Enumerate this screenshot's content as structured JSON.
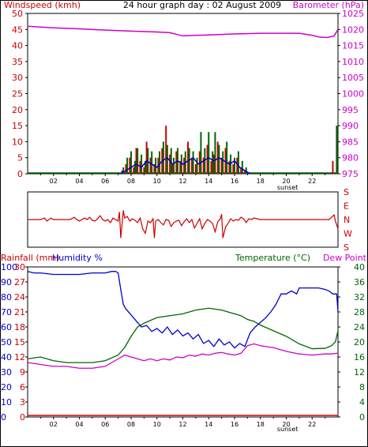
{
  "colors": {
    "wind": "#cc0000",
    "gust": "#006600",
    "avg": "#0000cc",
    "baro": "#cc00cc",
    "dir": "#cc0000",
    "rain": "#cc0000",
    "humidity": "#0000cc",
    "temperature": "#006600",
    "dew": "#cc00cc",
    "axis": "#000000"
  },
  "hour_labels": [
    "02",
    "04",
    "06",
    "08",
    "10",
    "12",
    "14",
    "16",
    "18",
    "20",
    "22"
  ],
  "sunset_label": "sunset",
  "chart_data": [
    {
      "type": "bar",
      "title": "24 hour graph day : 02 August 2009",
      "ylabel": "Windspeed (kmh)",
      "y2label": "Barometer (hPa)",
      "x_range": [
        0,
        24
      ],
      "ylim": [
        0,
        50
      ],
      "y_ticks": [
        0,
        5,
        10,
        15,
        20,
        25,
        30,
        35,
        40,
        45,
        50
      ],
      "y2lim": [
        975,
        1025
      ],
      "y2_ticks": [
        975,
        980,
        985,
        990,
        995,
        1000,
        1005,
        1010,
        1015,
        1020,
        1025
      ],
      "series": [
        {
          "key": "wind",
          "x": [
            7.3,
            7.6,
            7.9,
            8.2,
            8.4,
            8.7,
            9.0,
            9.2,
            9.5,
            9.8,
            10.1,
            10.4,
            10.7,
            11.0,
            11.2,
            11.5,
            11.8,
            12.1,
            12.4,
            12.7,
            13.0,
            13.3,
            13.6,
            13.9,
            14.2,
            14.4,
            14.7,
            15.0,
            15.3,
            15.6,
            15.9,
            16.2,
            16.5,
            16.8,
            23.6
          ],
          "values": [
            1,
            3,
            5,
            2,
            8,
            4,
            2,
            10,
            5,
            3,
            5,
            8,
            15,
            6,
            3,
            7,
            4,
            5,
            10,
            5,
            3,
            7,
            5,
            9,
            4,
            6,
            10,
            5,
            8,
            4,
            3,
            5,
            2,
            1,
            4
          ]
        },
        {
          "key": "gust",
          "x": [
            7.4,
            7.7,
            8.0,
            8.3,
            8.5,
            8.8,
            9.1,
            9.3,
            9.6,
            9.9,
            10.2,
            10.5,
            10.8,
            11.1,
            11.3,
            11.6,
            11.9,
            12.2,
            12.5,
            12.8,
            13.1,
            13.4,
            13.7,
            14.0,
            14.3,
            14.5,
            14.8,
            15.1,
            15.4,
            15.7,
            16.0,
            16.3,
            16.6,
            16.9,
            23.9
          ],
          "values": [
            2,
            5,
            7,
            4,
            8,
            6,
            4,
            8,
            7,
            5,
            7,
            10,
            9,
            8,
            5,
            8,
            6,
            7,
            8,
            7,
            5,
            13,
            8,
            13,
            7,
            13,
            9,
            7,
            10,
            6,
            5,
            7,
            4,
            2,
            15
          ]
        },
        {
          "key": "avg",
          "x": [
            7.2,
            7.6,
            8.0,
            8.4,
            8.8,
            9.2,
            9.6,
            10.0,
            10.4,
            10.8,
            11.2,
            11.6,
            12.0,
            12.4,
            12.8,
            13.2,
            13.6,
            14.0,
            14.4,
            14.8,
            15.2,
            15.6,
            16.0,
            16.4,
            16.8,
            17.2
          ],
          "values": [
            0,
            1,
            2,
            3,
            2,
            4,
            3,
            2,
            4,
            5,
            3,
            4,
            3,
            4,
            5,
            3,
            4,
            5,
            4,
            5,
            4,
            3,
            4,
            2,
            1,
            0
          ]
        },
        {
          "key": "baro",
          "x": [
            0,
            2,
            4,
            6,
            8,
            10,
            11,
            12,
            14,
            16,
            18,
            20,
            21,
            22,
            22.6,
            23.2,
            23.7,
            24
          ],
          "values": [
            1021,
            1020.5,
            1020.2,
            1019.8,
            1019.5,
            1019.2,
            1019,
            1018,
            1018.3,
            1018.6,
            1018.8,
            1018.8,
            1018.8,
            1018.2,
            1017.6,
            1017.5,
            1018,
            1020
          ]
        }
      ]
    },
    {
      "type": "line",
      "y_labels": [
        "S",
        "E",
        "N",
        "W",
        "S"
      ],
      "series": [
        {
          "key": "dir",
          "x": [
            0,
            1,
            1.3,
            1.5,
            1.8,
            2,
            2.2,
            2.4,
            2.6,
            2.8,
            3,
            3.2,
            3.4,
            3.6,
            3.8,
            4,
            4.2,
            4.4,
            4.6,
            4.8,
            5,
            5.2,
            5.4,
            5.6,
            5.8,
            6,
            6.2,
            6.4,
            6.6,
            6.8,
            7,
            7.1,
            7.2,
            7.4,
            7.5,
            7.7,
            7.9,
            8.1,
            8.3,
            8.5,
            8.7,
            8.9,
            9.1,
            9.3,
            9.5,
            9.7,
            9.8,
            9.9,
            10.1,
            10.3,
            10.5,
            10.7,
            10.9,
            11.1,
            11.3,
            11.5,
            11.7,
            11.9,
            12.1,
            12.3,
            12.5,
            12.7,
            12.9,
            13.1,
            13.3,
            13.5,
            13.7,
            13.9,
            14.1,
            14.3,
            14.5,
            14.7,
            14.9,
            15,
            15.1,
            15.3,
            15.5,
            15.7,
            15.9,
            16.1,
            16.3,
            16.5,
            16.7,
            16.9,
            17.1,
            17.3,
            17.5,
            18,
            20,
            22,
            23.3,
            23.5,
            23.7,
            23.8,
            24
          ],
          "values": [
            180,
            180,
            170,
            190,
            170,
            180,
            180,
            180,
            180,
            180,
            180,
            180,
            175,
            165,
            180,
            190,
            180,
            170,
            180,
            165,
            185,
            190,
            175,
            155,
            180,
            190,
            180,
            200,
            170,
            180,
            190,
            130,
            300,
            120,
            170,
            160,
            190,
            175,
            185,
            200,
            170,
            240,
            270,
            190,
            200,
            175,
            300,
            190,
            180,
            200,
            215,
            180,
            185,
            225,
            200,
            190,
            185,
            220,
            195,
            175,
            200,
            180,
            235,
            205,
            175,
            240,
            205,
            180,
            190,
            205,
            260,
            195,
            175,
            145,
            300,
            230,
            205,
            175,
            190,
            180,
            185,
            165,
            175,
            200,
            175,
            180,
            170,
            180,
            180,
            180,
            180,
            165,
            150,
            190,
            240
          ]
        }
      ]
    },
    {
      "type": "line",
      "ylabel": "Rainfall (mm)",
      "ylabel2": "Humidity %",
      "y2label": "Temperature (°C)",
      "y2label2": "Dew Point",
      "x_range": [
        0,
        24
      ],
      "humidity_ticks": [
        0,
        10,
        20,
        30,
        40,
        50,
        60,
        70,
        80,
        90,
        100
      ],
      "rain_ticks": [
        0,
        3,
        6,
        9,
        12,
        15,
        18,
        21,
        24,
        27,
        30
      ],
      "temp_ticks": [
        0,
        4,
        8,
        12,
        16,
        20,
        24,
        28,
        32,
        36,
        40
      ],
      "series": [
        {
          "key": "rain",
          "x": [
            0,
            24
          ],
          "values": [
            0,
            0
          ]
        },
        {
          "key": "humidity",
          "x": [
            0,
            0.5,
            1,
            2,
            3,
            4,
            5,
            6,
            6.5,
            6.8,
            7,
            7.2,
            7.4,
            7.6,
            8,
            8.4,
            8.8,
            9.2,
            9.6,
            10,
            10.4,
            10.8,
            11.2,
            11.6,
            12,
            12.4,
            12.8,
            13.2,
            13.6,
            14,
            14.4,
            14.8,
            15.2,
            15.6,
            16,
            16.4,
            16.8,
            17.2,
            17.6,
            18,
            18.4,
            18.8,
            19.2,
            19.6,
            20,
            20.4,
            20.8,
            21,
            21.5,
            22,
            22.5,
            23,
            23.3,
            23.6,
            23.9,
            24
          ],
          "values": [
            97,
            96,
            96,
            95,
            95,
            95,
            96,
            96,
            97,
            97,
            96,
            85,
            75,
            72,
            68,
            64,
            60,
            61,
            57,
            59,
            56,
            60,
            55,
            58,
            54,
            56,
            52,
            55,
            49,
            51,
            47,
            52,
            48,
            50,
            46,
            49,
            47,
            56,
            60,
            63,
            66,
            70,
            75,
            82,
            82,
            84,
            82,
            86,
            86,
            86,
            86,
            85,
            84,
            82,
            82,
            70
          ]
        },
        {
          "key": "temperature",
          "x": [
            0,
            1,
            2,
            3,
            4,
            5,
            6,
            7,
            7.5,
            8,
            8.5,
            9,
            10,
            11,
            12,
            13,
            14,
            15,
            16,
            16.5,
            17,
            17.5,
            18,
            19,
            20,
            21,
            22,
            23,
            23.5,
            23.8,
            24
          ],
          "values": [
            15.5,
            16,
            15,
            14.5,
            14.5,
            14.5,
            15,
            16.5,
            18.5,
            21.5,
            24,
            25,
            26.5,
            27,
            27.5,
            28.5,
            29,
            28.5,
            27.5,
            27,
            26,
            25.5,
            24.5,
            23,
            21.5,
            19.5,
            18.2,
            18.3,
            19,
            20,
            23
          ]
        },
        {
          "key": "dew",
          "x": [
            0,
            1,
            2,
            3,
            4,
            5,
            6,
            7,
            7.5,
            8,
            8.5,
            9,
            9.5,
            10,
            10.5,
            11,
            11.5,
            12,
            12.5,
            13,
            13.5,
            14,
            14.5,
            15,
            15.5,
            16,
            16.5,
            17,
            17.5,
            18,
            19,
            20,
            21,
            22,
            23,
            23.5,
            24
          ],
          "values": [
            14.5,
            14,
            13.5,
            13.5,
            13,
            13,
            13.5,
            15.5,
            16.5,
            16,
            15.5,
            15,
            15.5,
            15,
            15.5,
            15.2,
            16,
            15.8,
            16.5,
            16.2,
            16.8,
            16.5,
            17,
            17.2,
            16.8,
            16.5,
            17,
            19,
            19.5,
            19,
            18.5,
            17.5,
            16.8,
            16.5,
            16.8,
            16.8,
            17
          ]
        }
      ]
    }
  ]
}
